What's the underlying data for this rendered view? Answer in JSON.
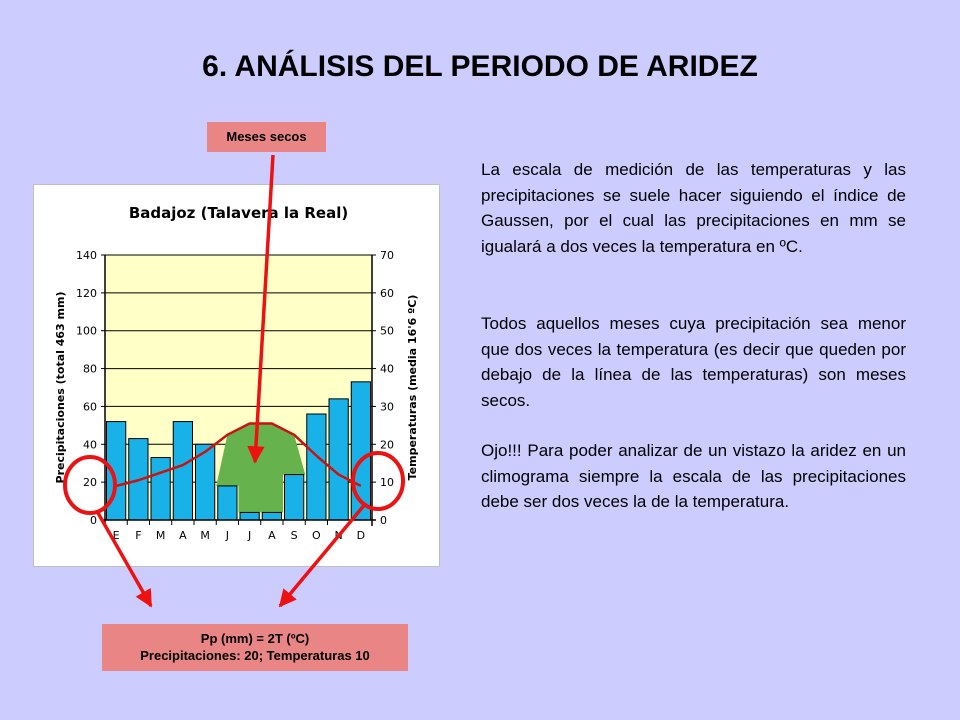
{
  "slide": {
    "title": "6. ANÁLISIS DEL PERIODO DE ARIDEZ",
    "callout_top": "Meses secos",
    "callout_bottom_line1": "Pp (mm) = 2T (ºC)",
    "callout_bottom_line2": "Precipitaciones: 20; Temperaturas 10",
    "paragraphs": [
      "La escala de medición de las temperaturas y las precipitaciones se suele hacer siguiendo el índice de Gaussen, por el cual las precipitaciones en mm se igualará a dos veces la temperatura en ºC.",
      "Todos aquellos meses cuya precipitación sea menor que dos veces la temperatura (es decir que queden por debajo de la línea de las temperaturas) son meses secos.",
      "Ojo!!! Para poder analizar de un vistazo la aridez en un climograma siempre la escala de las precipitaciones debe ser dos veces la de la temperatura."
    ],
    "colors": {
      "background": "#ccccff",
      "callout": "#e98585",
      "arrow": "#ee1111",
      "circle": "#ee1111",
      "bar_fill": "#19b2e8",
      "plot_background": "#ffffc8",
      "dry_area": "#66b34d",
      "temperature_line": "#cc1111"
    }
  },
  "chart_data": {
    "type": "bar",
    "title": "Badajoz (Talavera la Real)",
    "ylabel": "Precipitaciones (total 463 mm)",
    "y2label": "Temperaturas (media 16'6 ºC)",
    "categories": [
      "E",
      "F",
      "M",
      "A",
      "M",
      "J",
      "J",
      "A",
      "S",
      "O",
      "N",
      "D"
    ],
    "ylim": [
      0,
      140
    ],
    "y2lim": [
      0,
      70
    ],
    "yticks": [
      0,
      20,
      40,
      60,
      80,
      100,
      120,
      140
    ],
    "y2ticks": [
      0,
      10,
      20,
      30,
      40,
      50,
      60,
      70
    ],
    "series": [
      {
        "type": "bar",
        "axis": "left",
        "values": [
          52,
          43,
          33,
          52,
          40,
          18,
          4,
          4,
          24,
          56,
          64,
          73
        ]
      },
      {
        "type": "line",
        "axis": "right",
        "values": [
          9,
          10.5,
          12.5,
          14.5,
          18,
          22.5,
          25.5,
          25.5,
          22.5,
          17,
          12,
          9
        ]
      }
    ],
    "grid": true
  }
}
